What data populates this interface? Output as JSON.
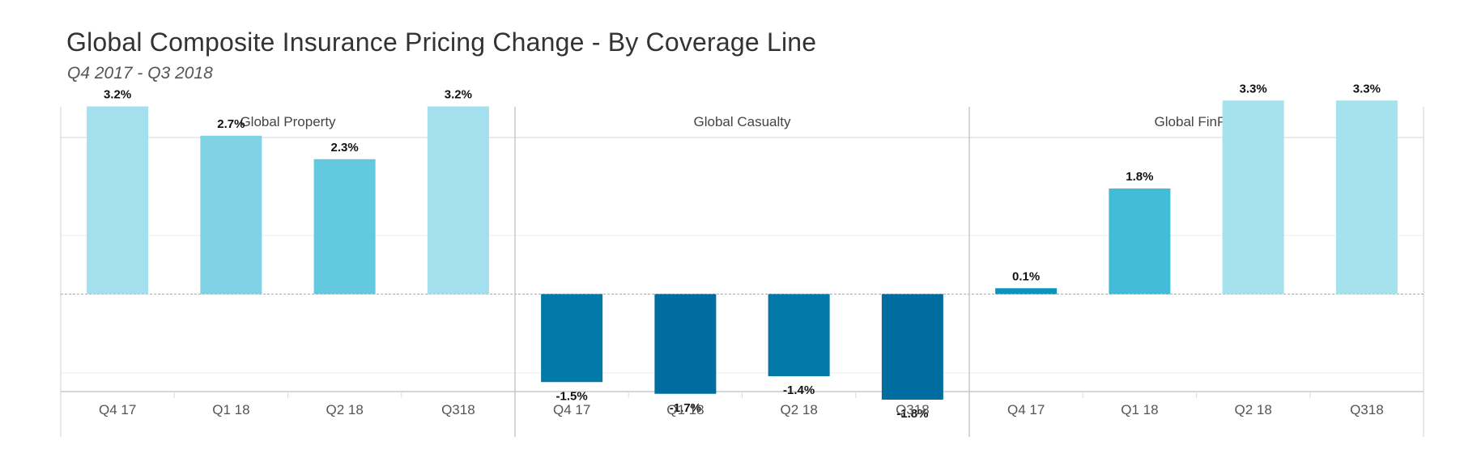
{
  "title": "Global Composite Insurance Pricing Change - By Coverage Line",
  "subtitle": "Q4 2017 - Q3 2018",
  "chart_data": {
    "type": "bar",
    "categories": [
      "Q4 17",
      "Q1 18",
      "Q2 18",
      "Q318"
    ],
    "ylim": [
      -2.4,
      4.0
    ],
    "grid": true,
    "panels": [
      {
        "name": "Global Property",
        "values": [
          3.2,
          2.7,
          2.3,
          3.2
        ],
        "labels": [
          "3.2%",
          "2.7%",
          "2.3%",
          "3.2%"
        ],
        "colors": [
          "#a3dfec",
          "#7fd3e5",
          "#63c9de",
          "#a3dfec"
        ]
      },
      {
        "name": "Global Casualty",
        "values": [
          -1.5,
          -1.7,
          -1.4,
          -1.8
        ],
        "labels": [
          "-1.5%",
          "-1.7%",
          "-1.4%",
          "-1.8%"
        ],
        "colors": [
          "#0079a8",
          "#006da0",
          "#0079a8",
          "#006da0"
        ]
      },
      {
        "name": "Global FinPro",
        "values": [
          0.1,
          1.8,
          3.3,
          3.3
        ],
        "labels": [
          "0.1%",
          "1.8%",
          "3.3%",
          "3.3%"
        ],
        "colors": [
          "#0b94bd",
          "#43bdd7",
          "#a6e1ee",
          "#a6e1ee"
        ]
      }
    ]
  }
}
